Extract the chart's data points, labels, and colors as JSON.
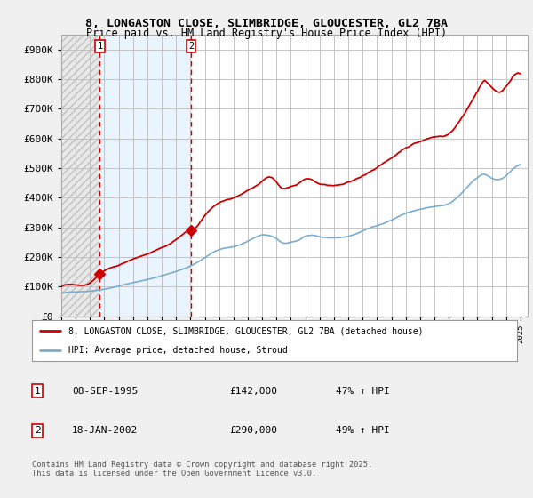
{
  "title_line1": "8, LONGASTON CLOSE, SLIMBRIDGE, GLOUCESTER, GL2 7BA",
  "title_line2": "Price paid vs. HM Land Registry's House Price Index (HPI)",
  "background_color": "#f0f0f0",
  "red_line_color": "#cc0000",
  "blue_line_color": "#7aadcf",
  "marker_color_red": "#cc0000",
  "purchase1_date": "08-SEP-1995",
  "purchase1_price": "£142,000",
  "purchase1_hpi": "47% ↑ HPI",
  "purchase2_date": "18-JAN-2002",
  "purchase2_price": "£290,000",
  "purchase2_hpi": "49% ↑ HPI",
  "legend_line1": "8, LONGASTON CLOSE, SLIMBRIDGE, GLOUCESTER, GL2 7BA (detached house)",
  "legend_line2": "HPI: Average price, detached house, Stroud",
  "footer": "Contains HM Land Registry data © Crown copyright and database right 2025.\nThis data is licensed under the Open Government Licence v3.0.",
  "ylim": [
    0,
    950000
  ],
  "yticks": [
    0,
    100000,
    200000,
    300000,
    400000,
    500000,
    600000,
    700000,
    800000,
    900000
  ],
  "ytick_labels": [
    "£0",
    "£100K",
    "£200K",
    "£300K",
    "£400K",
    "£500K",
    "£600K",
    "£700K",
    "£800K",
    "£900K"
  ],
  "xmin": 1993.0,
  "xmax": 2025.5,
  "purchase1_x": 1995.69,
  "purchase2_x": 2002.05,
  "purchase1_y": 142000,
  "purchase2_y": 290000
}
